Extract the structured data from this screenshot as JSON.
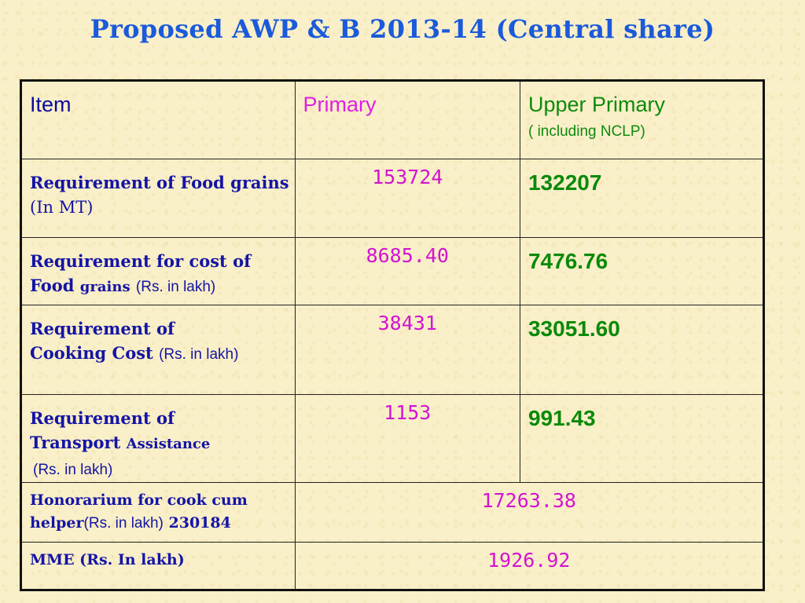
{
  "title": "Proposed AWP & B 2013-14 (Central share)",
  "header": {
    "item": "Item",
    "primary": "Primary",
    "upper_primary": "Upper Primary",
    "upper_primary_sub": "( including NCLP)"
  },
  "rows": [
    {
      "label_a": "Requirement of Food grains",
      "label_b": "(In MT)",
      "primary": "153724",
      "upper": "132207"
    },
    {
      "label_a": "Requirement for cost of Food",
      "label_b": "grains",
      "label_c": "(Rs. in lakh)",
      "primary": "8685.40",
      "upper": "7476.76"
    },
    {
      "label_a": "Requirement of Cooking Cost",
      "label_c": "(Rs. in lakh)",
      "primary": "38431",
      "upper": "33051.60"
    },
    {
      "label_a": "Requirement of Transport",
      "label_b": "Assistance",
      "label_c": "(Rs. in lakh)",
      "primary": "1153",
      "upper": "991.43"
    },
    {
      "label_a": "Honorarium for cook cum helper",
      "label_c": "(Rs. in lakh)",
      "label_d": "230184",
      "merged": "17263.38"
    },
    {
      "label_a": "MME (Rs. In lakh)",
      "merged": "1926.92"
    }
  ]
}
